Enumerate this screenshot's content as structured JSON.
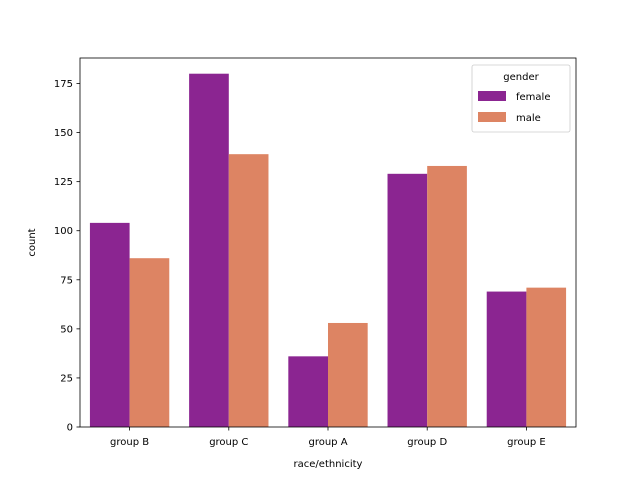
{
  "chart_data": {
    "type": "bar",
    "xlabel": "race/ethnicity",
    "ylabel": "count",
    "categories": [
      "group B",
      "group C",
      "group A",
      "group D",
      "group E"
    ],
    "series": [
      {
        "name": "female",
        "values": [
          104,
          180,
          36,
          129,
          69
        ],
        "color": "#8b2591"
      },
      {
        "name": "male",
        "values": [
          86,
          139,
          53,
          133,
          71
        ],
        "color": "#dd8463"
      }
    ],
    "ylim": [
      0,
      188
    ],
    "yticks": [
      0,
      25,
      50,
      75,
      100,
      125,
      150,
      175
    ],
    "grid": false,
    "legend": {
      "title": "gender",
      "placement": "top-right"
    }
  }
}
